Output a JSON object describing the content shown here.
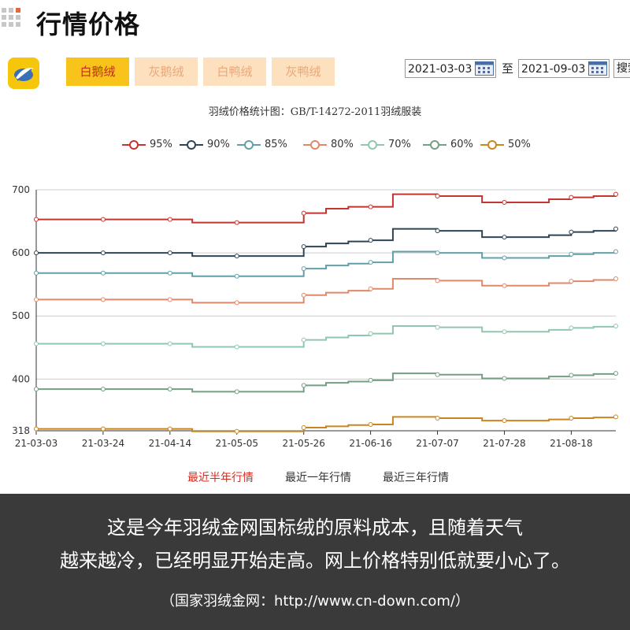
{
  "header": {
    "title": "行情价格",
    "grid_icon": "grid-icon"
  },
  "toolbar": {
    "logo_icon": "feather-logo-icon",
    "tabs": [
      {
        "label": "白鹅绒",
        "active": true
      },
      {
        "label": "灰鹅绒",
        "active": false
      },
      {
        "label": "白鸭绒",
        "active": false
      },
      {
        "label": "灰鸭绒",
        "active": false
      }
    ],
    "start_date": "2021-03-03",
    "to_label": "至",
    "end_date": "2021-09-03",
    "calendar_icon": "calendar-icon",
    "search_label": "搜索"
  },
  "range_links": [
    {
      "label": "最近半年行情",
      "active": true
    },
    {
      "label": "最近一年行情",
      "active": false
    },
    {
      "label": "最近三年行情",
      "active": false
    }
  ],
  "caption": {
    "line1": "这是今年羽绒金网国标绒的原料成本，且随着天气",
    "line2": "越来越冷，已经明显开始走高。网上价格特别低就要小心了。",
    "line3": "（国家羽绒金网：http://www.cn-down.com/）"
  },
  "chart_data": {
    "type": "line",
    "title": "羽绒价格统计图：GB/T-14272-2011羽绒服装",
    "legend_position": "top",
    "grid": true,
    "x": [
      "21-03-03",
      "21-03-10",
      "21-03-17",
      "21-03-24",
      "21-03-31",
      "21-04-07",
      "21-04-14",
      "21-04-21",
      "21-04-28",
      "21-05-05",
      "21-05-12",
      "21-05-19",
      "21-05-26",
      "21-06-02",
      "21-06-09",
      "21-06-16",
      "21-06-23",
      "21-06-30",
      "21-07-07",
      "21-07-14",
      "21-07-21",
      "21-07-28",
      "21-08-04",
      "21-08-11",
      "21-08-18",
      "21-08-25",
      "21-09-01"
    ],
    "x_ticks": [
      "21-03-03",
      "21-03-24",
      "21-04-14",
      "21-05-05",
      "21-05-26",
      "21-06-16",
      "21-07-07",
      "21-07-28",
      "21-08-18"
    ],
    "y_ticks": [
      318,
      400,
      500,
      600,
      700
    ],
    "ylim": [
      318,
      700
    ],
    "series": [
      {
        "name": "95%",
        "color": "#c23531",
        "values": [
          653,
          653,
          653,
          653,
          653,
          653,
          653,
          648,
          648,
          648,
          648,
          648,
          663,
          670,
          673,
          673,
          693,
          693,
          690,
          690,
          680,
          680,
          680,
          685,
          688,
          690,
          693
        ]
      },
      {
        "name": "90%",
        "color": "#2f4554",
        "values": [
          600,
          600,
          600,
          600,
          600,
          600,
          600,
          595,
          595,
          595,
          595,
          595,
          610,
          615,
          618,
          620,
          638,
          638,
          635,
          635,
          625,
          625,
          625,
          628,
          633,
          635,
          638
        ]
      },
      {
        "name": "85%",
        "color": "#61a0a8",
        "values": [
          568,
          568,
          568,
          568,
          568,
          568,
          568,
          563,
          563,
          563,
          563,
          563,
          575,
          580,
          583,
          585,
          602,
          602,
          600,
          600,
          592,
          592,
          592,
          595,
          598,
          600,
          602
        ]
      },
      {
        "name": "80%",
        "color": "#e0896a",
        "values": [
          526,
          526,
          526,
          526,
          526,
          526,
          526,
          521,
          521,
          521,
          521,
          521,
          533,
          537,
          540,
          543,
          559,
          559,
          556,
          556,
          548,
          548,
          548,
          552,
          555,
          557,
          559
        ]
      },
      {
        "name": "70%",
        "color": "#91c7ae",
        "values": [
          456,
          456,
          456,
          456,
          456,
          456,
          456,
          451,
          451,
          451,
          451,
          451,
          462,
          466,
          469,
          472,
          484,
          484,
          482,
          482,
          475,
          475,
          475,
          478,
          481,
          483,
          484
        ]
      },
      {
        "name": "60%",
        "color": "#749f83",
        "values": [
          384,
          384,
          384,
          384,
          384,
          384,
          384,
          380,
          380,
          380,
          380,
          380,
          390,
          394,
          396,
          398,
          409,
          409,
          407,
          407,
          401,
          401,
          401,
          404,
          406,
          408,
          409
        ]
      },
      {
        "name": "50%",
        "color": "#ca8622",
        "values": [
          321,
          321,
          321,
          321,
          321,
          321,
          321,
          317,
          317,
          317,
          317,
          317,
          323,
          325,
          327,
          328,
          340,
          340,
          338,
          338,
          334,
          334,
          334,
          336,
          338,
          339,
          340
        ]
      }
    ]
  }
}
